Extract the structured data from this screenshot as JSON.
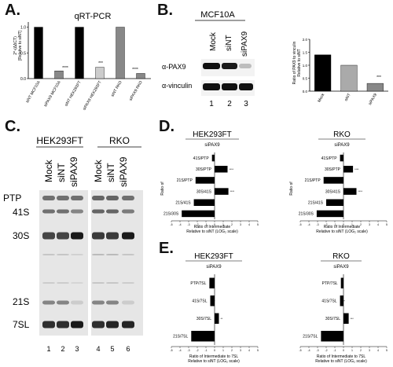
{
  "panels": {
    "a": {
      "letter": "A.",
      "title": "qRT-PCR",
      "ylabel": "2^-(ΔΔCT)",
      "ylabel2": "[Relative to siNT]",
      "sig": [
        "****",
        "***",
        "****"
      ]
    },
    "b": {
      "letter": "B.",
      "cell_line": "MCF10A",
      "lanes": [
        "Mock",
        "siNT",
        "siPAX9"
      ],
      "rows": [
        "α-PAX9",
        "α-vinculin"
      ],
      "lane_numbers": [
        "1",
        "2",
        "3"
      ],
      "ylabel": "Ratio of PAX9 to vinculin",
      "ylabel2": "Relative to siNT",
      "sig": "***"
    },
    "c": {
      "letter": "C.",
      "groups": [
        "HEK293FT",
        "RKO"
      ],
      "lanes": [
        "Mock",
        "siNT",
        "siPAX9",
        "Mock",
        "siNT",
        "siPAX9"
      ],
      "bands": [
        "PTP",
        "41S",
        "30S",
        "21S",
        "7SL"
      ],
      "lane_numbers": [
        "1",
        "2",
        "3",
        "4",
        "5",
        "6"
      ]
    },
    "d": {
      "letter": "D.",
      "groups": [
        "HEK293FT",
        "RKO"
      ],
      "subtitle": "siPAX9",
      "ylabel": "Ratio of",
      "xlabel": "Ratio of Intermediate",
      "xlabel2": "Relative to siNT (LOG₂ scale)",
      "sig": {
        "hek": [
          "",
          "****",
          "***",
          "****",
          "***",
          "****"
        ],
        "rko": [
          "*",
          "****",
          "***",
          "****",
          "***",
          "****"
        ]
      }
    },
    "e": {
      "letter": "E.",
      "groups": [
        "HEK293FT",
        "RKO"
      ],
      "subtitle": "siPAX9",
      "xlabel": "Ratio of Intermediate to 7SL",
      "xlabel2": "Relative to siNT (LOG₂ scale)",
      "sig": {
        "hek": [
          "",
          "***",
          "**",
          "****"
        ],
        "rko": [
          "",
          "***",
          "***",
          "****"
        ]
      }
    }
  },
  "chart_data": [
    {
      "type": "bar",
      "panel": "A",
      "title": "qRT-PCR",
      "categories": [
        "siNT MCF10A",
        "siPAX9 MCF10A",
        "siNT HEK293FT",
        "siPAX9 HEK293FT",
        "siNT RKO",
        "siPAX9 RKO"
      ],
      "values": [
        1.0,
        0.15,
        1.0,
        0.22,
        1.0,
        0.1
      ],
      "colors": [
        "#000000",
        "#888888",
        "#000000",
        "#cccccc",
        "#888888",
        "#888888"
      ],
      "ylim": [
        0,
        1.1
      ],
      "yticks": [
        "0.0",
        "0.5",
        "1.0"
      ]
    },
    {
      "type": "bar",
      "panel": "B",
      "categories": [
        "Mock",
        "siNT",
        "siPAX9"
      ],
      "values": [
        1.4,
        1.0,
        0.3
      ],
      "colors": [
        "#000000",
        "#aaaaaa",
        "#888888"
      ],
      "ylim": [
        0,
        2.0
      ],
      "yticks": [
        "0.0",
        "0.5",
        "1.0",
        "1.5",
        "2.0"
      ]
    },
    {
      "type": "bar",
      "panel": "D-HEK293FT",
      "orientation": "horizontal",
      "categories": [
        "41S/PTP",
        "30S/PTP",
        "21S/PTP",
        "30S/41S",
        "21S/41S",
        "21S/30S"
      ],
      "values": [
        -0.3,
        1.5,
        -2.2,
        1.6,
        -2.4,
        -3.8
      ],
      "xlim": [
        -5,
        5
      ]
    },
    {
      "type": "bar",
      "panel": "D-RKO",
      "orientation": "horizontal",
      "categories": [
        "41S/PTP",
        "30S/PTP",
        "21S/PTP",
        "30S/41S",
        "21S/41S",
        "21S/30S"
      ],
      "values": [
        -0.4,
        1.1,
        -2.3,
        1.5,
        -2.0,
        -3.1
      ],
      "xlim": [
        -5,
        5
      ]
    },
    {
      "type": "bar",
      "panel": "E-HEK293FT",
      "orientation": "horizontal",
      "categories": [
        "PTP/7SL",
        "41S/7SL",
        "30S/7SL",
        "21S/7SL"
      ],
      "values": [
        -0.6,
        -0.5,
        0.5,
        -2.7
      ],
      "xlim": [
        -5,
        5
      ]
    },
    {
      "type": "bar",
      "panel": "E-RKO",
      "orientation": "horizontal",
      "categories": [
        "PTP/7SL",
        "41S/7SL",
        "30S/7SL",
        "21S/7SL"
      ],
      "values": [
        -0.3,
        -0.4,
        0.6,
        -2.6
      ],
      "xlim": [
        -5,
        5
      ]
    }
  ]
}
